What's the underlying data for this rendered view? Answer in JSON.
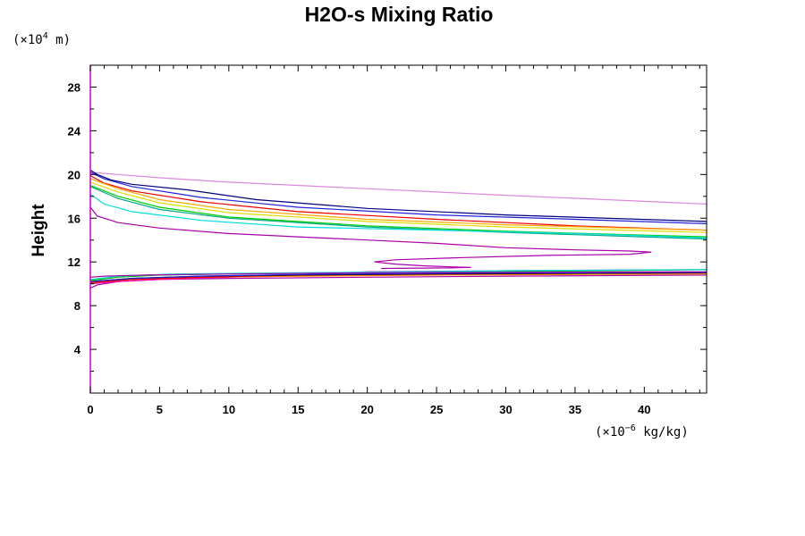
{
  "chart_data": {
    "type": "line",
    "title": "H2O-s Mixing Ratio",
    "xlabel": "",
    "ylabel": "Height",
    "x_unit": {
      "prefix": "(×10",
      "exp": "−6",
      "suffix": " kg/kg)"
    },
    "y_unit": {
      "prefix": "(×10",
      "exp": "4",
      "suffix": " m)"
    },
    "xlim": [
      0,
      44.5
    ],
    "ylim": [
      0,
      30
    ],
    "x_ticks": [
      0,
      5,
      10,
      15,
      20,
      25,
      30,
      35,
      40
    ],
    "y_ticks": [
      4,
      8,
      12,
      16,
      20,
      24,
      28
    ],
    "series": [
      {
        "name": "upper-violet",
        "color": "#dd88dd",
        "points": [
          [
            0,
            20.2
          ],
          [
            5,
            19.7
          ],
          [
            10,
            19.3
          ],
          [
            20,
            18.7
          ],
          [
            30,
            18.1
          ],
          [
            44.5,
            17.3
          ]
        ]
      },
      {
        "name": "upper-navy",
        "color": "#000080",
        "points": [
          [
            0,
            20.4
          ],
          [
            0.5,
            20.0
          ],
          [
            1.5,
            19.5
          ],
          [
            3,
            19.1
          ],
          [
            7,
            18.6
          ],
          [
            12,
            17.7
          ],
          [
            20,
            16.9
          ],
          [
            30,
            16.3
          ],
          [
            44.5,
            15.7
          ]
        ]
      },
      {
        "name": "upper-blue",
        "color": "#2222dd",
        "points": [
          [
            0,
            20.2
          ],
          [
            1,
            19.6
          ],
          [
            3,
            18.9
          ],
          [
            8,
            17.9
          ],
          [
            15,
            17.0
          ],
          [
            25,
            16.3
          ],
          [
            35,
            15.9
          ],
          [
            44.5,
            15.5
          ]
        ]
      },
      {
        "name": "upper-red",
        "color": "#ee0000",
        "points": [
          [
            0,
            19.9
          ],
          [
            1,
            19.2
          ],
          [
            3,
            18.5
          ],
          [
            8,
            17.5
          ],
          [
            15,
            16.6
          ],
          [
            25,
            15.9
          ],
          [
            35,
            15.3
          ],
          [
            44.5,
            14.9
          ]
        ]
      },
      {
        "name": "upper-orange",
        "color": "#ffaa00",
        "points": [
          [
            0,
            19.6
          ],
          [
            2,
            18.7
          ],
          [
            5,
            17.7
          ],
          [
            10,
            16.8
          ],
          [
            20,
            15.9
          ],
          [
            30,
            15.4
          ],
          [
            44.5,
            14.9
          ]
        ]
      },
      {
        "name": "upper-yellow",
        "color": "#dddd00",
        "points": [
          [
            0,
            19.3
          ],
          [
            2,
            18.4
          ],
          [
            5,
            17.4
          ],
          [
            10,
            16.5
          ],
          [
            20,
            15.7
          ],
          [
            30,
            15.2
          ],
          [
            44.5,
            14.7
          ]
        ]
      },
      {
        "name": "upper-green",
        "color": "#00cc00",
        "points": [
          [
            0,
            19.0
          ],
          [
            2,
            18.0
          ],
          [
            5,
            17.0
          ],
          [
            10,
            16.1
          ],
          [
            20,
            15.3
          ],
          [
            30,
            14.8
          ],
          [
            44.5,
            14.3
          ]
        ]
      },
      {
        "name": "upper-teal",
        "color": "#00aa88",
        "points": [
          [
            0,
            18.9
          ],
          [
            2,
            17.8
          ],
          [
            5,
            16.8
          ],
          [
            10,
            16.0
          ],
          [
            20,
            15.2
          ],
          [
            30,
            14.7
          ],
          [
            44.5,
            14.1
          ]
        ]
      },
      {
        "name": "upper-cyan",
        "color": "#00dddd",
        "points": [
          [
            0,
            18.2
          ],
          [
            1,
            17.3
          ],
          [
            3,
            16.6
          ],
          [
            8,
            15.8
          ],
          [
            15,
            15.2
          ],
          [
            25,
            14.9
          ],
          [
            35,
            14.6
          ],
          [
            44.5,
            14.2
          ]
        ]
      },
      {
        "name": "upper-magenta",
        "color": "#aa00aa",
        "points": [
          [
            0,
            17.0
          ],
          [
            0.5,
            16.2
          ],
          [
            2,
            15.6
          ],
          [
            5,
            15.1
          ],
          [
            10,
            14.6
          ],
          [
            15,
            14.3
          ],
          [
            20,
            14.0
          ],
          [
            25,
            13.7
          ],
          [
            30,
            13.3
          ],
          [
            35,
            13.1
          ],
          [
            39,
            13.0
          ],
          [
            40.5,
            12.9
          ],
          [
            39,
            12.7
          ],
          [
            33,
            12.6
          ],
          [
            27,
            12.4
          ],
          [
            22,
            12.2
          ],
          [
            20.5,
            12.0
          ],
          [
            22,
            11.8
          ],
          [
            24,
            11.65
          ],
          [
            26,
            11.55
          ],
          [
            27.5,
            11.5
          ],
          [
            26,
            11.45
          ],
          [
            21,
            11.4
          ]
        ]
      },
      {
        "name": "lower-magenta-a",
        "color": "#aa00aa",
        "points": [
          [
            0,
            9.6
          ],
          [
            0.5,
            9.9
          ],
          [
            2,
            10.2
          ],
          [
            5,
            10.4
          ],
          [
            10,
            10.5
          ],
          [
            20,
            10.6
          ],
          [
            30,
            10.7
          ],
          [
            44.5,
            10.8
          ]
        ]
      },
      {
        "name": "lower-pink",
        "color": "#ff00aa",
        "points": [
          [
            0,
            10.0
          ],
          [
            2,
            10.2
          ],
          [
            5,
            10.4
          ],
          [
            10,
            10.6
          ],
          [
            15,
            10.8
          ],
          [
            20,
            11.1
          ],
          [
            30,
            11.2
          ],
          [
            44.5,
            11.3
          ]
        ]
      },
      {
        "name": "lower-orange",
        "color": "#ff8800",
        "points": [
          [
            0,
            10.1
          ],
          [
            3,
            10.4
          ],
          [
            8,
            10.6
          ],
          [
            15,
            10.7
          ],
          [
            25,
            10.8
          ],
          [
            44.5,
            10.9
          ]
        ]
      },
      {
        "name": "lower-red",
        "color": "#ee0000",
        "points": [
          [
            0,
            10.1
          ],
          [
            3,
            10.4
          ],
          [
            8,
            10.6
          ],
          [
            15,
            10.8
          ],
          [
            25,
            10.9
          ],
          [
            44.5,
            11.0
          ]
        ]
      },
      {
        "name": "lower-black",
        "color": "#000000",
        "points": [
          [
            0,
            10.2
          ],
          [
            3,
            10.5
          ],
          [
            8,
            10.7
          ],
          [
            15,
            10.8
          ],
          [
            25,
            10.9
          ],
          [
            44.5,
            11.0
          ]
        ]
      },
      {
        "name": "lower-blue",
        "color": "#2222dd",
        "points": [
          [
            0,
            10.2
          ],
          [
            3,
            10.5
          ],
          [
            8,
            10.7
          ],
          [
            15,
            10.85
          ],
          [
            25,
            10.95
          ],
          [
            44.5,
            11.05
          ]
        ]
      },
      {
        "name": "lower-green",
        "color": "#00bb00",
        "points": [
          [
            0,
            10.3
          ],
          [
            2,
            10.6
          ],
          [
            5,
            10.8
          ],
          [
            10,
            10.9
          ],
          [
            20,
            11.0
          ],
          [
            30,
            11.1
          ],
          [
            44.5,
            11.3
          ]
        ]
      },
      {
        "name": "lower-cyan",
        "color": "#00dddd",
        "points": [
          [
            0,
            10.4
          ],
          [
            2,
            10.7
          ],
          [
            6,
            10.9
          ],
          [
            15,
            11.0
          ],
          [
            30,
            11.2
          ],
          [
            44.5,
            11.3
          ]
        ]
      },
      {
        "name": "lower-magenta-b",
        "color": "#aa00aa",
        "points": [
          [
            0,
            10.6
          ],
          [
            1,
            10.7
          ],
          [
            4,
            10.8
          ],
          [
            10,
            10.9
          ],
          [
            20,
            11.0
          ],
          [
            30,
            11.05
          ],
          [
            44.5,
            11.1
          ]
        ]
      }
    ]
  }
}
